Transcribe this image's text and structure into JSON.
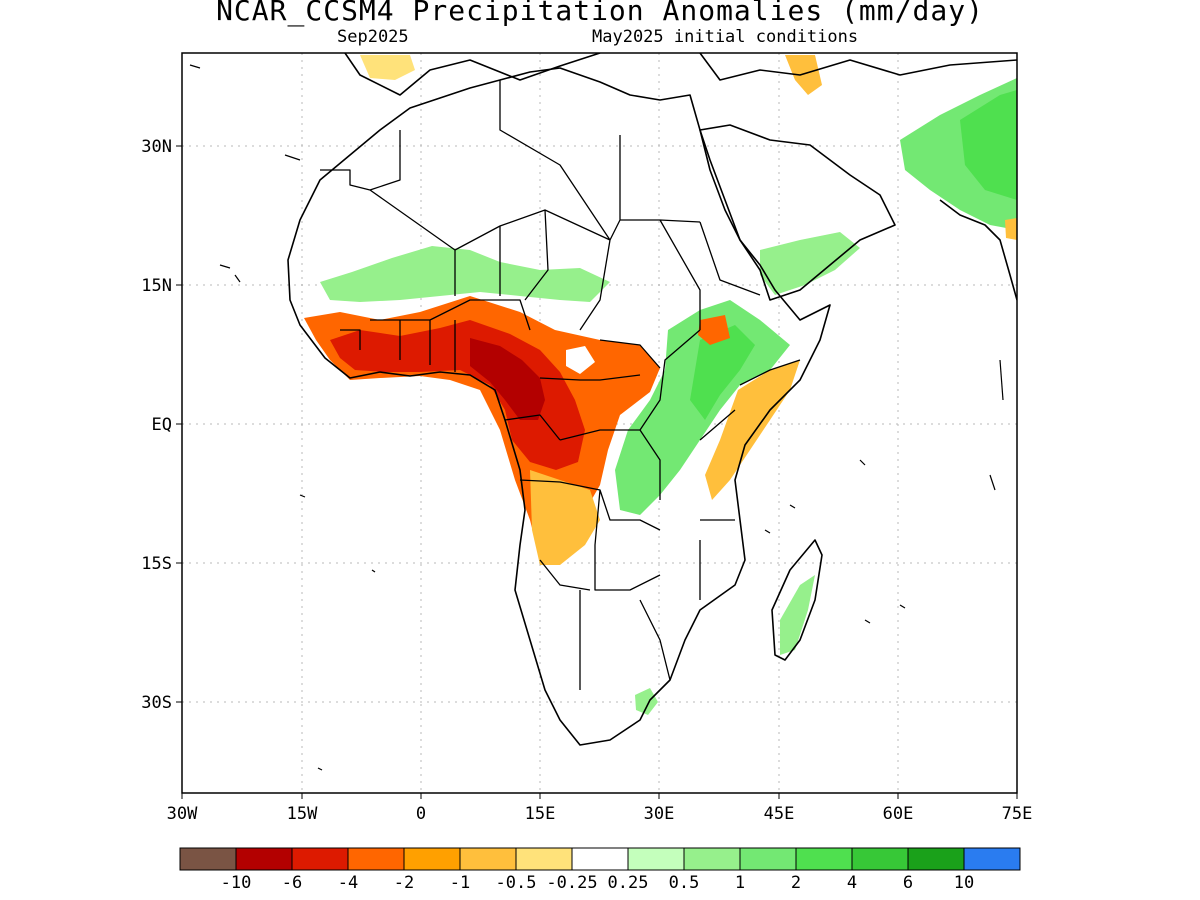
{
  "title": "NCAR_CCSM4 Precipitation Anomalies (mm/day)",
  "subtitle_left": "Sep2025",
  "subtitle_right": "May2025 initial conditions",
  "y_ticks": [
    "30N",
    "15N",
    "EQ",
    "15S",
    "30S"
  ],
  "x_ticks": [
    "30W",
    "15W",
    "0",
    "15E",
    "30E",
    "45E",
    "60E",
    "75E"
  ],
  "colorbar": {
    "colors": [
      "#7a5444",
      "#b30000",
      "#dd1a00",
      "#ff6600",
      "#ffa000",
      "#ffbf3c",
      "#ffe27a",
      "#ffffff",
      "#c4ffbc",
      "#96f08c",
      "#73e873",
      "#4fe04f",
      "#37c837",
      "#1aa11a",
      "#2a7cf0"
    ],
    "labels": [
      "-10",
      "-6",
      "-4",
      "-2",
      "-1",
      "-0.5",
      "-0.25",
      "0.25",
      "0.5",
      "1",
      "2",
      "4",
      "6",
      "10"
    ]
  }
}
